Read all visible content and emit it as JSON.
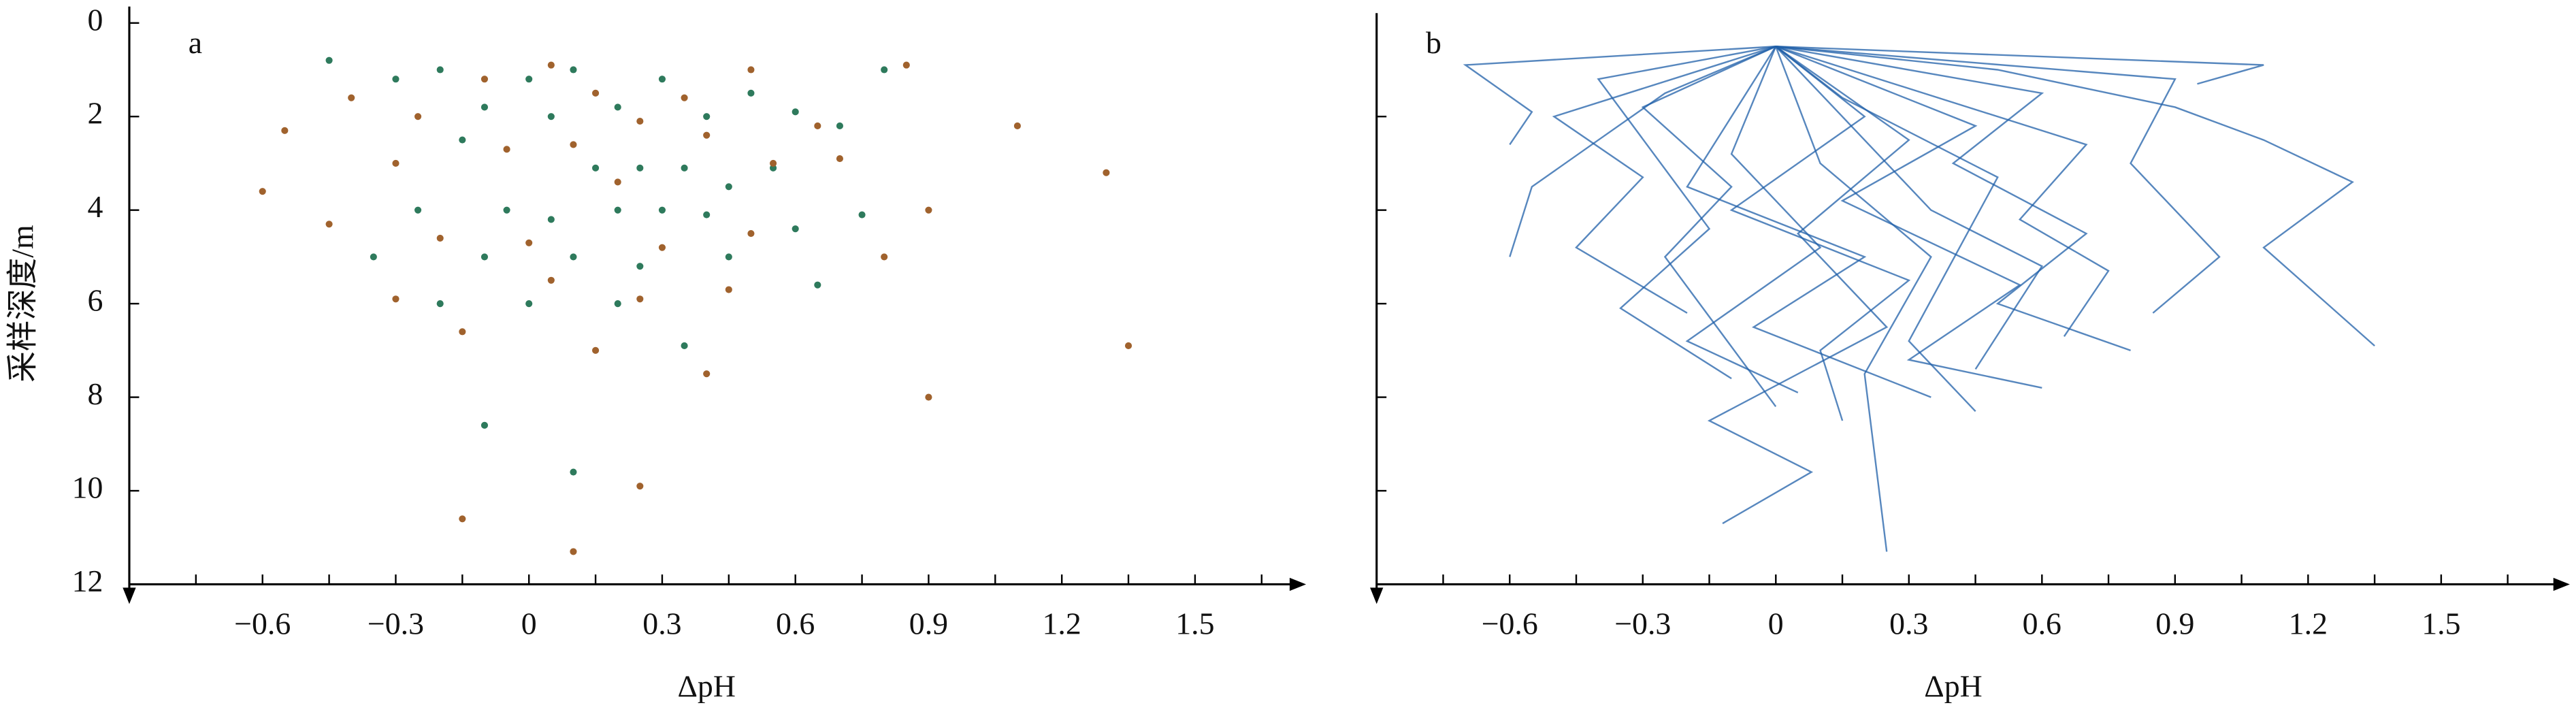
{
  "chart_data": [
    {
      "type": "scatter",
      "panel_label": "a",
      "xlabel": "ΔpH",
      "ylabel": "采样深度/m",
      "xlim": [
        -0.9,
        1.75
      ],
      "ylim": [
        0,
        12
      ],
      "y_inverted": true,
      "xticks": [
        {
          "value": -0.6,
          "label": "−0.6"
        },
        {
          "value": -0.3,
          "label": "−0.3"
        },
        0,
        0.3,
        0.6,
        0.9,
        1.2,
        1.5
      ],
      "xminor_ticks": [
        -0.75,
        -0.45,
        -0.15,
        0.15,
        0.45,
        0.75,
        1.05,
        1.35,
        1.65
      ],
      "yticks": [
        0,
        2,
        4,
        6,
        8,
        10,
        12
      ],
      "ytick_labels": true,
      "series": [
        {
          "color": "#2e7a5c",
          "x": [
            -0.45,
            -0.3,
            -0.2,
            -0.1,
            0,
            0.05,
            0.1,
            0.2,
            0.3,
            0.4,
            0.5,
            0.6,
            0.7,
            0.8,
            -0.15,
            0.15,
            0.25,
            0.35,
            0.45,
            0.55,
            -0.25,
            -0.05,
            0.05,
            0.2,
            0.3,
            0.4,
            0.6,
            0.75,
            -0.35,
            -0.1,
            0.1,
            0.25,
            0.45,
            0.65,
            -0.2,
            0,
            0.2,
            0.35,
            -0.1,
            0.1
          ],
          "values": [
            0.8,
            1.2,
            1.0,
            1.8,
            1.2,
            2.0,
            1.0,
            1.8,
            1.2,
            2.0,
            1.5,
            1.9,
            2.2,
            1.0,
            2.5,
            3.1,
            3.1,
            3.1,
            3.5,
            3.1,
            4.0,
            4.0,
            4.2,
            4.0,
            4.0,
            4.1,
            4.4,
            4.1,
            5.0,
            5.0,
            5.0,
            5.2,
            5.0,
            5.6,
            6.0,
            6.0,
            6.0,
            6.9,
            8.6,
            9.6
          ]
        },
        {
          "color": "#a0622d",
          "x": [
            -0.55,
            -0.4,
            -0.25,
            -0.1,
            0.05,
            0.15,
            0.25,
            0.35,
            0.5,
            0.65,
            0.85,
            1.1,
            -0.6,
            -0.3,
            -0.05,
            0.1,
            0.2,
            0.4,
            0.55,
            0.7,
            1.3,
            -0.45,
            -0.2,
            0,
            0.3,
            0.5,
            0.9,
            -0.3,
            0.05,
            0.25,
            0.45,
            0.8,
            1.35,
            -0.15,
            0.15,
            0.4,
            0.9,
            -0.15,
            0.25,
            0.1
          ],
          "values": [
            2.3,
            1.6,
            2.0,
            1.2,
            0.9,
            1.5,
            2.1,
            1.6,
            1.0,
            2.2,
            0.9,
            2.2,
            3.6,
            3.0,
            2.7,
            2.6,
            3.4,
            2.4,
            3.0,
            2.9,
            3.2,
            4.3,
            4.6,
            4.7,
            4.8,
            4.5,
            4.0,
            5.9,
            5.5,
            5.9,
            5.7,
            5.0,
            6.9,
            6.6,
            7.0,
            7.5,
            8.0,
            10.6,
            9.9,
            11.3
          ]
        }
      ]
    },
    {
      "type": "line",
      "panel_label": "b",
      "xlabel": "ΔpH",
      "color": "#1f5fa8",
      "xlim": [
        -0.9,
        1.79
      ],
      "ylim": [
        0,
        12
      ],
      "y_inverted": true,
      "xticks": [
        {
          "value": -0.6,
          "label": "−0.6"
        },
        {
          "value": -0.3,
          "label": "−0.3"
        },
        0,
        0.3,
        0.6,
        0.9,
        1.2,
        1.5
      ],
      "xminor_ticks": [
        -0.75,
        -0.45,
        -0.15,
        0.15,
        0.45,
        0.75,
        1.05,
        1.35,
        1.65
      ],
      "yticks": [
        2,
        4,
        6,
        8,
        10
      ],
      "ytick_labels": false,
      "series": [
        {
          "x": [
            0,
            -0.25,
            -0.4,
            -0.55,
            -0.6
          ],
          "values": [
            0.5,
            1.5,
            2.5,
            3.5,
            5
          ]
        },
        {
          "x": [
            0,
            0.5,
            0.9,
            1.1,
            1.3,
            1.1,
            1.35
          ],
          "values": [
            0.5,
            1.0,
            1.8,
            2.5,
            3.4,
            4.8,
            6.9
          ]
        },
        {
          "x": [
            0,
            -0.5,
            -0.3,
            -0.45,
            -0.2
          ],
          "values": [
            0.5,
            2.0,
            3.3,
            4.8,
            6.2
          ]
        },
        {
          "x": [
            0,
            0.2,
            -0.1,
            0.3,
            0.1,
            0.15
          ],
          "values": [
            0.5,
            2,
            4,
            5.5,
            7,
            8.5
          ]
        },
        {
          "x": [
            0,
            0.3,
            0.05,
            0.25,
            -0.15,
            0.08,
            -0.12
          ],
          "values": [
            0.5,
            2.5,
            4.5,
            6.5,
            8.5,
            9.6,
            10.7
          ]
        },
        {
          "x": [
            0,
            0.1,
            0.35,
            0.2,
            0.25
          ],
          "values": [
            0.5,
            3,
            5,
            7.5,
            11.3
          ]
        },
        {
          "x": [
            0,
            0.6,
            0.4,
            0.7,
            0.5,
            0.8
          ],
          "values": [
            0.5,
            1.5,
            3,
            4.5,
            6,
            7
          ]
        },
        {
          "x": [
            0,
            -0.3,
            -0.1,
            -0.25,
            0
          ],
          "values": [
            0.5,
            1.8,
            3.5,
            5,
            8.2
          ]
        },
        {
          "x": [
            0,
            0.9,
            0.8,
            1.0,
            0.85
          ],
          "values": [
            0.5,
            1.2,
            3,
            5,
            6.2
          ]
        },
        {
          "x": [
            0,
            -0.7,
            -0.55,
            -0.6
          ],
          "values": [
            0.5,
            0.9,
            1.9,
            2.6
          ]
        },
        {
          "x": [
            0,
            0.45,
            0.15,
            0.55,
            0.3,
            0.6
          ],
          "values": [
            0.5,
            2.2,
            3.8,
            5.6,
            7.2,
            7.8
          ]
        },
        {
          "x": [
            0,
            -0.2,
            0.2,
            -0.05,
            0.35
          ],
          "values": [
            0.5,
            3.5,
            5,
            6.5,
            8
          ]
        },
        {
          "x": [
            0,
            0.7,
            0.55,
            0.75,
            0.65
          ],
          "values": [
            0.5,
            2.6,
            4.2,
            5.3,
            6.7
          ]
        },
        {
          "x": [
            0,
            -0.4,
            -0.15,
            -0.35,
            -0.1
          ],
          "values": [
            0.5,
            1.2,
            4.4,
            6.1,
            7.6
          ]
        },
        {
          "x": [
            0,
            1.1,
            0.95
          ],
          "values": [
            0.5,
            0.9,
            1.3
          ]
        },
        {
          "x": [
            0,
            0.15,
            0.5,
            0.3,
            0.45
          ],
          "values": [
            0.5,
            1.6,
            3.3,
            6.8,
            8.3
          ]
        },
        {
          "x": [
            0,
            -0.1,
            0.1,
            -0.2,
            0.05
          ],
          "values": [
            0.5,
            2.8,
            4.8,
            6.8,
            7.9
          ]
        },
        {
          "x": [
            0,
            0.35,
            0.6,
            0.45
          ],
          "values": [
            0.5,
            4.0,
            5.2,
            7.4
          ]
        }
      ]
    }
  ]
}
